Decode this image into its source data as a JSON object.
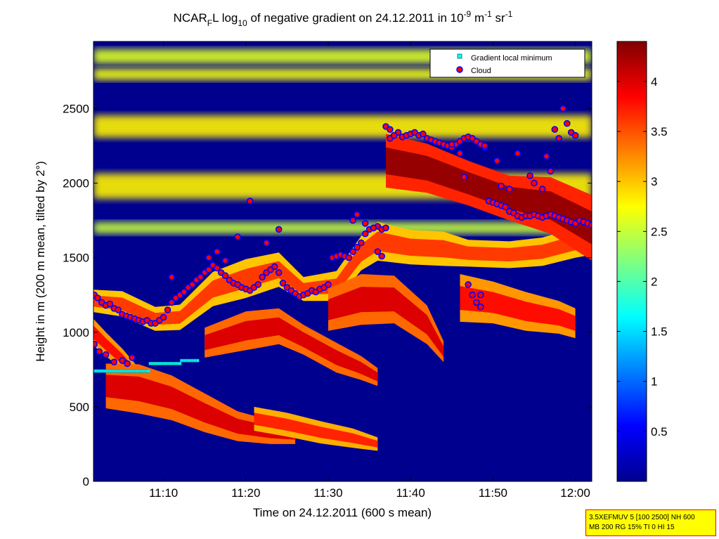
{
  "chart_data": {
    "type": "heatmap",
    "title": {
      "prefix": "NCAR",
      "prefix_sub": "F",
      "mid": "L log",
      "log_sub": "10",
      "text": " of negative gradient on 24.12.2011 in 10",
      "exp1": "-9",
      "unit_a": " m",
      "exp2": "-1",
      "unit_b": " sr",
      "exp3": "-1"
    },
    "xlabel": "Time on 24.12.2011 (600 s mean)",
    "ylabel": "Height in m (200 m mean, tilted by 2°)",
    "x_range_minutes": [
      1.5,
      62.0
    ],
    "y_range_m": [
      0,
      2950
    ],
    "x_ticks": [
      {
        "label": "11:10",
        "value": 10
      },
      {
        "label": "11:20",
        "value": 20
      },
      {
        "label": "11:30",
        "value": 30
      },
      {
        "label": "11:40",
        "value": 40
      },
      {
        "label": "11:50",
        "value": 50
      },
      {
        "label": "12:00",
        "value": 60
      }
    ],
    "y_ticks": [
      0,
      500,
      1000,
      1500,
      2000,
      2500
    ],
    "colorbar": {
      "range": [
        0,
        4.4
      ],
      "ticks": [
        0.5,
        1,
        1.5,
        2,
        2.5,
        3,
        3.5,
        4
      ],
      "colormap": "jet"
    },
    "background_value": 0.05,
    "cloud_bands": [
      {
        "value": 3.6,
        "pts": [
          [
            1.5,
            1210
          ],
          [
            5,
            1190
          ],
          [
            9,
            1090
          ],
          [
            12,
            1100
          ],
          [
            16,
            1290
          ],
          [
            20,
            1360
          ],
          [
            24,
            1420
          ],
          [
            27,
            1290
          ],
          [
            31,
            1310
          ],
          [
            34,
            1530
          ],
          [
            36,
            1610
          ],
          [
            40,
            1570
          ],
          [
            44,
            1560
          ],
          [
            47,
            1530
          ],
          [
            52,
            1520
          ],
          [
            56,
            1540
          ],
          [
            60,
            1600
          ],
          [
            62,
            1620
          ]
        ],
        "thick": [
          150,
          170,
          160,
          170,
          230,
          260,
          230,
          160,
          200,
          230,
          260,
          230,
          230,
          180,
          180,
          190,
          200,
          200
        ]
      },
      {
        "value": 4.0,
        "pts": [
          [
            15,
            930
          ],
          [
            20,
            1010
          ],
          [
            24,
            1040
          ],
          [
            27,
            950
          ],
          [
            31,
            830
          ],
          [
            34,
            760
          ],
          [
            36,
            700
          ]
        ],
        "thick": [
          200,
          260,
          240,
          200,
          200,
          160,
          120
        ]
      },
      {
        "value": 4.0,
        "pts": [
          [
            30,
            1150
          ],
          [
            34,
            1220
          ],
          [
            38,
            1220
          ],
          [
            42,
            1050
          ],
          [
            44,
            870
          ]
        ],
        "thick": [
          280,
          340,
          320,
          260,
          140
        ]
      },
      {
        "value": 3.8,
        "pts": [
          [
            46,
            1230
          ],
          [
            50,
            1200
          ],
          [
            54,
            1140
          ],
          [
            58,
            1100
          ],
          [
            60,
            1060
          ]
        ],
        "thick": [
          320,
          280,
          260,
          220,
          200
        ]
      },
      {
        "value": 3.8,
        "pts": [
          [
            1.5,
            1000
          ],
          [
            3,
            920
          ],
          [
            5,
            820
          ],
          [
            7,
            700
          ]
        ],
        "thick": [
          180,
          160,
          140,
          120
        ]
      },
      {
        "value": 4.0,
        "pts": [
          [
            3,
            640
          ],
          [
            7,
            620
          ],
          [
            11,
            560
          ],
          [
            15,
            460
          ],
          [
            19,
            370
          ],
          [
            23,
            330
          ],
          [
            26,
            310
          ]
        ],
        "thick": [
          300,
          330,
          300,
          260,
          200,
          160,
          120
        ]
      },
      {
        "value": 3.7,
        "pts": [
          [
            21,
            420
          ],
          [
            25,
            380
          ],
          [
            29,
            330
          ],
          [
            33,
            290
          ],
          [
            36,
            250
          ]
        ],
        "thick": [
          160,
          160,
          150,
          130,
          90
        ]
      },
      {
        "value": 4.3,
        "pts": [
          [
            37,
            2150
          ],
          [
            42,
            2100
          ],
          [
            47,
            2000
          ],
          [
            52,
            1900
          ],
          [
            57,
            1850
          ],
          [
            62,
            1700
          ]
        ],
        "thick": [
          360,
          330,
          300,
          300,
          380,
          440
        ]
      }
    ],
    "upper_layers": [
      {
        "value": 2.6,
        "y": 2850,
        "thick": 100
      },
      {
        "value": 2.7,
        "y": 2730,
        "thick": 80
      },
      {
        "value": 2.8,
        "y": 2380,
        "thick": 150
      },
      {
        "value": 2.8,
        "y": 1980,
        "thick": 170
      },
      {
        "value": 2.5,
        "y": 1700,
        "thick": 80
      }
    ],
    "minimum_series": {
      "name": "Gradient local minimum",
      "color": "#00ffff",
      "segments": [
        {
          "x0": 1.6,
          "x1": 8.3,
          "y": 740
        },
        {
          "x0": 8.4,
          "x1": 12.0,
          "y": 790
        },
        {
          "x0": 12.2,
          "x1": 14.2,
          "y": 810
        }
      ]
    },
    "cloud_series": {
      "name": "Cloud",
      "color": "#ff0000",
      "edge_color": "#0000ff",
      "x": [
        1.6,
        2,
        2.5,
        3,
        3.5,
        4,
        4.5,
        5,
        5.5,
        6,
        6.5,
        7,
        7.5,
        8,
        8.5,
        9,
        9.5,
        10,
        10.5,
        11,
        11.5,
        12,
        12.5,
        13,
        13.5,
        14,
        14.5,
        15,
        15.5,
        16,
        16.5,
        17,
        17.5,
        18,
        18.5,
        19,
        19.5,
        20,
        20.5,
        21,
        21.5,
        22,
        22.5,
        23,
        23.5,
        24,
        24.5,
        25,
        25.5,
        26,
        26.5,
        27,
        27.5,
        28,
        28.5,
        29,
        29.5,
        30,
        30.5,
        31,
        31.5,
        32,
        32.5,
        33,
        33.5,
        34,
        34.5,
        35,
        35.5,
        36,
        36.5,
        37,
        37.5,
        38,
        38.5,
        39,
        39.5,
        40,
        40.5,
        41,
        41.5,
        42,
        42.5,
        43,
        43.5,
        44,
        44.5,
        45,
        45.5,
        46,
        46.5,
        47,
        47.5,
        48,
        48.5,
        49,
        49.5,
        50,
        50.5,
        51,
        51.5,
        52,
        52.5,
        53,
        53.5,
        54,
        54.5,
        55,
        55.5,
        56,
        56.5,
        57,
        57.5,
        58,
        58.5,
        59,
        59.5,
        60,
        60.5,
        61,
        61.5,
        62
      ],
      "y": [
        1250,
        1230,
        1200,
        1180,
        1190,
        1160,
        1150,
        1120,
        1110,
        1100,
        1090,
        1080,
        1070,
        1080,
        1060,
        1060,
        1080,
        1100,
        1150,
        1200,
        1230,
        1250,
        1270,
        1300,
        1320,
        1350,
        1370,
        1400,
        1420,
        1450,
        1430,
        1400,
        1380,
        1350,
        1330,
        1320,
        1300,
        1290,
        1280,
        1300,
        1320,
        1370,
        1400,
        1420,
        1440,
        1400,
        1330,
        1300,
        1280,
        1260,
        1240,
        1250,
        1260,
        1280,
        1270,
        1290,
        1300,
        1320,
        1500,
        1510,
        1520,
        1510,
        1500,
        1540,
        1570,
        1600,
        1660,
        1690,
        1700,
        1710,
        1690,
        1700,
        2300,
        2320,
        2340,
        2310,
        2320,
        2330,
        2340,
        2320,
        2330,
        2300,
        2290,
        2280,
        2270,
        2260,
        2250,
        2240,
        2260,
        2280,
        2300,
        2310,
        2300,
        2280,
        2260,
        2240,
        1880,
        1870,
        1860,
        1850,
        1840,
        1810,
        1800,
        1780,
        1770,
        1780,
        1780,
        1790,
        1780,
        1770,
        1780,
        1790,
        1780,
        1770,
        1760,
        1750,
        1740,
        1730,
        1750,
        1740,
        1730,
        1720
      ],
      "extra_points": [
        [
          1.6,
          920
        ],
        [
          2.2,
          870
        ],
        [
          3,
          850
        ],
        [
          4,
          800
        ],
        [
          5,
          810
        ],
        [
          5.6,
          790
        ],
        [
          6.2,
          830
        ],
        [
          11,
          1370
        ],
        [
          15.5,
          1500
        ],
        [
          16.5,
          1540
        ],
        [
          17.5,
          1480
        ],
        [
          19,
          1640
        ],
        [
          20.5,
          1880
        ],
        [
          22.5,
          1600
        ],
        [
          24,
          1690
        ],
        [
          33,
          1750
        ],
        [
          33.5,
          1790
        ],
        [
          34.5,
          1730
        ],
        [
          35.5,
          1700
        ],
        [
          36,
          1540
        ],
        [
          36.5,
          1510
        ],
        [
          37,
          2380
        ],
        [
          37.5,
          2360
        ],
        [
          38,
          2320
        ],
        [
          45,
          2260
        ],
        [
          46,
          2200
        ],
        [
          46.5,
          2040
        ],
        [
          47,
          1320
        ],
        [
          47.5,
          1250
        ],
        [
          48,
          1200
        ],
        [
          48.5,
          1170
        ],
        [
          48.5,
          1250
        ],
        [
          49,
          2250
        ],
        [
          50.5,
          2150
        ],
        [
          51,
          1980
        ],
        [
          52,
          1960
        ],
        [
          53,
          2200
        ],
        [
          54.5,
          2050
        ],
        [
          55,
          2000
        ],
        [
          56,
          1960
        ],
        [
          56.5,
          2180
        ],
        [
          57,
          2080
        ],
        [
          57.5,
          2360
        ],
        [
          58,
          2300
        ],
        [
          58.5,
          2500
        ],
        [
          59,
          2400
        ],
        [
          59.5,
          2340
        ],
        [
          60,
          2320
        ]
      ]
    }
  },
  "legend": {
    "min_label": "Gradient local minimum",
    "cloud_label": "Cloud"
  },
  "info_box": {
    "line1": "3.5XEFMUV 5 [100 2500] NH 600",
    "line2": "MB 200 RG 15% TI 0 HI 15"
  }
}
